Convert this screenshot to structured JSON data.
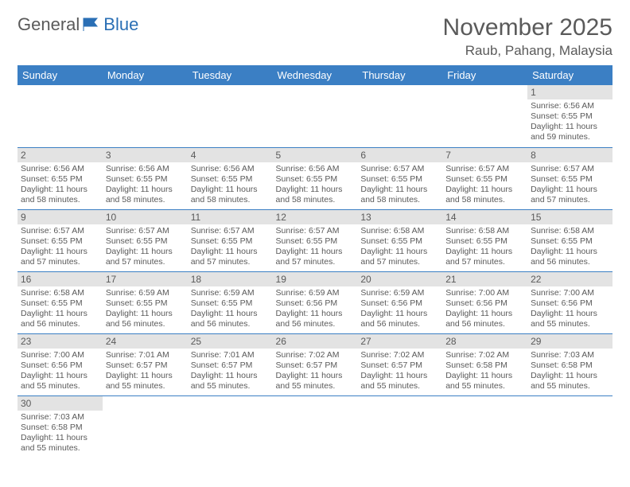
{
  "brand": {
    "part1": "General",
    "part2": "Blue"
  },
  "title": "November 2025",
  "location": "Raub, Pahang, Malaysia",
  "colors": {
    "header_bg": "#3b7fc4",
    "header_text": "#ffffff",
    "cell_border": "#3b7fc4",
    "daynum_bg": "#e3e3e3",
    "text": "#5a5a5a",
    "logo_flag": "#2a6fb5"
  },
  "days_of_week": [
    "Sunday",
    "Monday",
    "Tuesday",
    "Wednesday",
    "Thursday",
    "Friday",
    "Saturday"
  ],
  "weeks": [
    [
      null,
      null,
      null,
      null,
      null,
      null,
      {
        "n": "1",
        "sr": "6:56 AM",
        "ss": "6:55 PM",
        "dl": "11 hours and 59 minutes."
      }
    ],
    [
      {
        "n": "2",
        "sr": "6:56 AM",
        "ss": "6:55 PM",
        "dl": "11 hours and 58 minutes."
      },
      {
        "n": "3",
        "sr": "6:56 AM",
        "ss": "6:55 PM",
        "dl": "11 hours and 58 minutes."
      },
      {
        "n": "4",
        "sr": "6:56 AM",
        "ss": "6:55 PM",
        "dl": "11 hours and 58 minutes."
      },
      {
        "n": "5",
        "sr": "6:56 AM",
        "ss": "6:55 PM",
        "dl": "11 hours and 58 minutes."
      },
      {
        "n": "6",
        "sr": "6:57 AM",
        "ss": "6:55 PM",
        "dl": "11 hours and 58 minutes."
      },
      {
        "n": "7",
        "sr": "6:57 AM",
        "ss": "6:55 PM",
        "dl": "11 hours and 58 minutes."
      },
      {
        "n": "8",
        "sr": "6:57 AM",
        "ss": "6:55 PM",
        "dl": "11 hours and 57 minutes."
      }
    ],
    [
      {
        "n": "9",
        "sr": "6:57 AM",
        "ss": "6:55 PM",
        "dl": "11 hours and 57 minutes."
      },
      {
        "n": "10",
        "sr": "6:57 AM",
        "ss": "6:55 PM",
        "dl": "11 hours and 57 minutes."
      },
      {
        "n": "11",
        "sr": "6:57 AM",
        "ss": "6:55 PM",
        "dl": "11 hours and 57 minutes."
      },
      {
        "n": "12",
        "sr": "6:57 AM",
        "ss": "6:55 PM",
        "dl": "11 hours and 57 minutes."
      },
      {
        "n": "13",
        "sr": "6:58 AM",
        "ss": "6:55 PM",
        "dl": "11 hours and 57 minutes."
      },
      {
        "n": "14",
        "sr": "6:58 AM",
        "ss": "6:55 PM",
        "dl": "11 hours and 57 minutes."
      },
      {
        "n": "15",
        "sr": "6:58 AM",
        "ss": "6:55 PM",
        "dl": "11 hours and 56 minutes."
      }
    ],
    [
      {
        "n": "16",
        "sr": "6:58 AM",
        "ss": "6:55 PM",
        "dl": "11 hours and 56 minutes."
      },
      {
        "n": "17",
        "sr": "6:59 AM",
        "ss": "6:55 PM",
        "dl": "11 hours and 56 minutes."
      },
      {
        "n": "18",
        "sr": "6:59 AM",
        "ss": "6:55 PM",
        "dl": "11 hours and 56 minutes."
      },
      {
        "n": "19",
        "sr": "6:59 AM",
        "ss": "6:56 PM",
        "dl": "11 hours and 56 minutes."
      },
      {
        "n": "20",
        "sr": "6:59 AM",
        "ss": "6:56 PM",
        "dl": "11 hours and 56 minutes."
      },
      {
        "n": "21",
        "sr": "7:00 AM",
        "ss": "6:56 PM",
        "dl": "11 hours and 56 minutes."
      },
      {
        "n": "22",
        "sr": "7:00 AM",
        "ss": "6:56 PM",
        "dl": "11 hours and 55 minutes."
      }
    ],
    [
      {
        "n": "23",
        "sr": "7:00 AM",
        "ss": "6:56 PM",
        "dl": "11 hours and 55 minutes."
      },
      {
        "n": "24",
        "sr": "7:01 AM",
        "ss": "6:57 PM",
        "dl": "11 hours and 55 minutes."
      },
      {
        "n": "25",
        "sr": "7:01 AM",
        "ss": "6:57 PM",
        "dl": "11 hours and 55 minutes."
      },
      {
        "n": "26",
        "sr": "7:02 AM",
        "ss": "6:57 PM",
        "dl": "11 hours and 55 minutes."
      },
      {
        "n": "27",
        "sr": "7:02 AM",
        "ss": "6:57 PM",
        "dl": "11 hours and 55 minutes."
      },
      {
        "n": "28",
        "sr": "7:02 AM",
        "ss": "6:58 PM",
        "dl": "11 hours and 55 minutes."
      },
      {
        "n": "29",
        "sr": "7:03 AM",
        "ss": "6:58 PM",
        "dl": "11 hours and 55 minutes."
      }
    ],
    [
      {
        "n": "30",
        "sr": "7:03 AM",
        "ss": "6:58 PM",
        "dl": "11 hours and 55 minutes."
      },
      null,
      null,
      null,
      null,
      null,
      null
    ]
  ],
  "labels": {
    "sunrise": "Sunrise:",
    "sunset": "Sunset:",
    "daylight": "Daylight:"
  }
}
